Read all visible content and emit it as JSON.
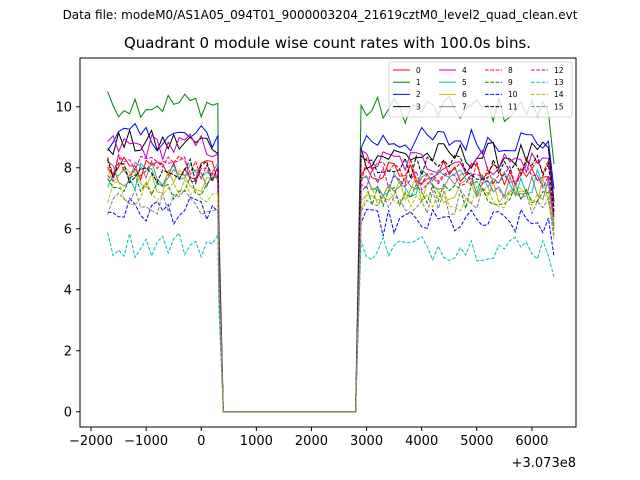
{
  "suptitle": "Data file: modeM0/AS1A05_094T01_9000003204_21619cztM0_level2_quad_clean.evt",
  "chart_data": {
    "type": "line",
    "title": "Quadrant 0 module wise count rates with 100.0s bins.",
    "xlabel": "",
    "ylabel": "",
    "x_offset_label": "+3.073e8",
    "xlim": [
      -2200,
      6800
    ],
    "ylim": [
      -0.5,
      11.6
    ],
    "x_ticks": [
      -2000,
      -1000,
      0,
      1000,
      2000,
      3000,
      4000,
      5000,
      6000
    ],
    "x_tick_labels": [
      "−2000",
      "−1000",
      "0",
      "1000",
      "2000",
      "3000",
      "4000",
      "5000",
      "6000"
    ],
    "y_ticks": [
      0,
      2,
      4,
      6,
      8,
      10
    ],
    "y_tick_labels": [
      "0",
      "2",
      "4",
      "6",
      "8",
      "10"
    ],
    "grid": false,
    "legend_position": "top-right",
    "segments": {
      "before": {
        "x_start": -1700,
        "x_end": 300,
        "step": 100
      },
      "after": {
        "x_start": 2900,
        "x_end": 6400,
        "step": 100
      },
      "gap": {
        "x": [
          320,
          400,
          2800
        ],
        "y": [
          5.0,
          0,
          0
        ]
      }
    },
    "series": [
      {
        "name": "0",
        "color": "#ff0000",
        "dash": "solid",
        "base_before": 7.9,
        "base_after": 7.8
      },
      {
        "name": "1",
        "color": "#008000",
        "dash": "solid",
        "base_before": 10.1,
        "base_after": 9.9
      },
      {
        "name": "2",
        "color": "#0000ff",
        "dash": "solid",
        "base_before": 9.0,
        "base_after": 8.9
      },
      {
        "name": "3",
        "color": "#000000",
        "dash": "solid",
        "base_before": 8.8,
        "base_after": 8.4
      },
      {
        "name": "4",
        "color": "#bf00bf",
        "dash": "solid",
        "base_before": 8.7,
        "base_after": 8.2
      },
      {
        "name": "5",
        "color": "#00bfbf",
        "dash": "solid",
        "base_before": 7.7,
        "base_after": 7.5
      },
      {
        "name": "6",
        "color": "#bfbf00",
        "dash": "solid",
        "base_before": 7.6,
        "base_after": 7.3
      },
      {
        "name": "7",
        "color": "#808080",
        "dash": "solid",
        "base_before": 7.8,
        "base_after": 7.4
      },
      {
        "name": "8",
        "color": "#ff0000",
        "dash": "dashed",
        "base_before": 8.0,
        "base_after": 7.9
      },
      {
        "name": "9",
        "color": "#008000",
        "dash": "dashed",
        "base_before": 7.4,
        "base_after": 7.1
      },
      {
        "name": "10",
        "color": "#0000ff",
        "dash": "dashed",
        "base_before": 6.6,
        "base_after": 6.2
      },
      {
        "name": "11",
        "color": "#000000",
        "dash": "dashed",
        "base_before": 7.9,
        "base_after": 8.0
      },
      {
        "name": "12",
        "color": "#bf00bf",
        "dash": "dashed",
        "base_before": 8.0,
        "base_after": 7.7
      },
      {
        "name": "13",
        "color": "#00bfbf",
        "dash": "dashed",
        "base_before": 5.5,
        "base_after": 5.4
      },
      {
        "name": "14",
        "color": "#bfbf00",
        "dash": "dashed",
        "base_before": 7.2,
        "base_after": 7.0
      },
      {
        "name": "15",
        "color": "#808080",
        "dash": "dashed",
        "base_before": 6.9,
        "base_after": 6.9
      }
    ]
  }
}
